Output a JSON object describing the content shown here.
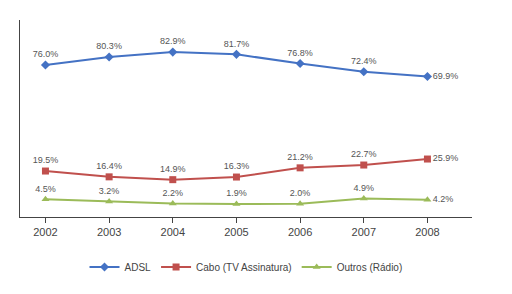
{
  "chart_data": {
    "type": "line",
    "x": [
      2002,
      2003,
      2004,
      2005,
      2006,
      2007,
      2008
    ],
    "series": [
      {
        "name": "ADSL",
        "color": "#4472C4",
        "marker": "diamond",
        "values": [
          76.0,
          80.3,
          82.9,
          81.7,
          76.8,
          72.4,
          69.9
        ],
        "value_labels": [
          "76.0%",
          "80.3%",
          "82.9%",
          "81.7%",
          "76.8%",
          "72.4%",
          "69.9%"
        ]
      },
      {
        "name": "Cabo (TV Assinatura)",
        "color": "#C0504D",
        "marker": "square",
        "values": [
          19.5,
          16.4,
          14.9,
          16.3,
          21.2,
          22.7,
          25.9
        ],
        "value_labels": [
          "19.5%",
          "16.4%",
          "14.9%",
          "16.3%",
          "21.2%",
          "22.7%",
          "25.9%"
        ]
      },
      {
        "name": "Outros (Rádio)",
        "color": "#9BBB59",
        "marker": "triangle-up",
        "values": [
          4.5,
          3.2,
          2.2,
          1.9,
          2.0,
          4.9,
          4.2
        ],
        "value_labels": [
          "4.5%",
          "3.2%",
          "2.2%",
          "1.9%",
          "2.0%",
          "4.9%",
          "4.2%"
        ]
      }
    ],
    "xlim": [
      2001.6,
      2008.7
    ],
    "xticks": [
      2002,
      2003,
      2004,
      2005,
      2006,
      2007,
      2008
    ],
    "ylim": [
      -5,
      100
    ],
    "tick_labels": "x",
    "data_labels": true,
    "legend": "bottom",
    "grid": false
  }
}
